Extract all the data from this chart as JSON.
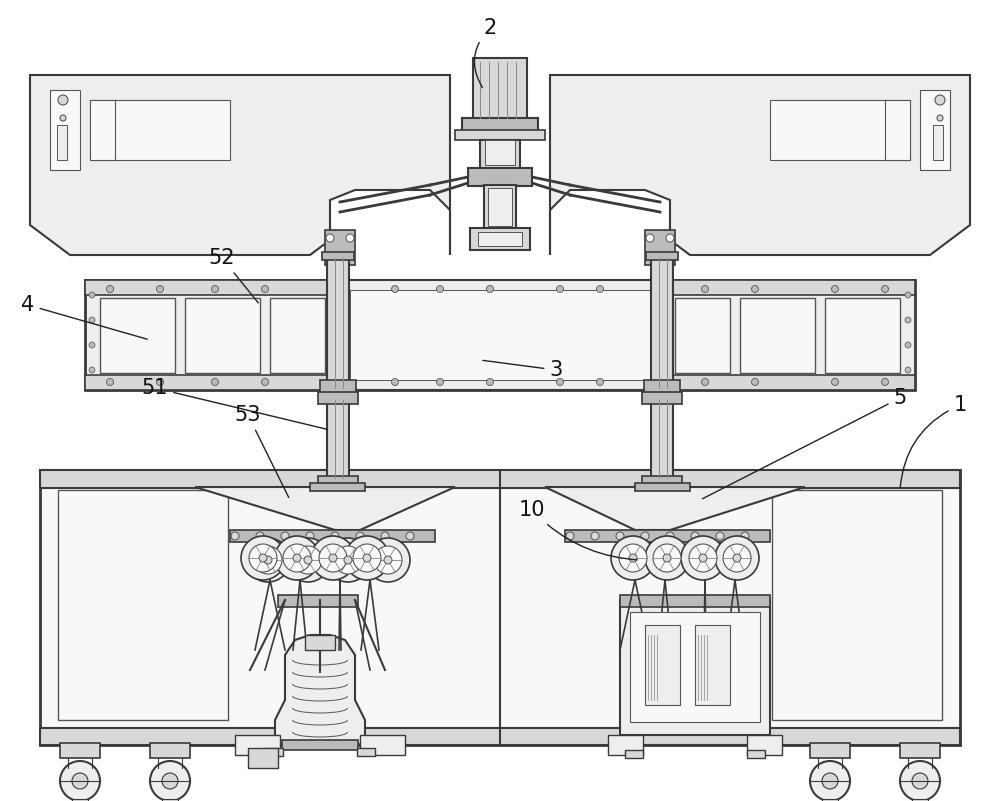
{
  "bg_color": "#ffffff",
  "lc": "#3a3a3a",
  "lc_thin": "#555555",
  "lc_light": "#888888",
  "fc_white": "#f8f8f8",
  "fc_light": "#eeeeee",
  "fc_mid": "#d8d8d8",
  "fc_dark": "#bbbbbb",
  "figsize": [
    10.0,
    8.01
  ],
  "dpi": 100,
  "label_fs": 15
}
